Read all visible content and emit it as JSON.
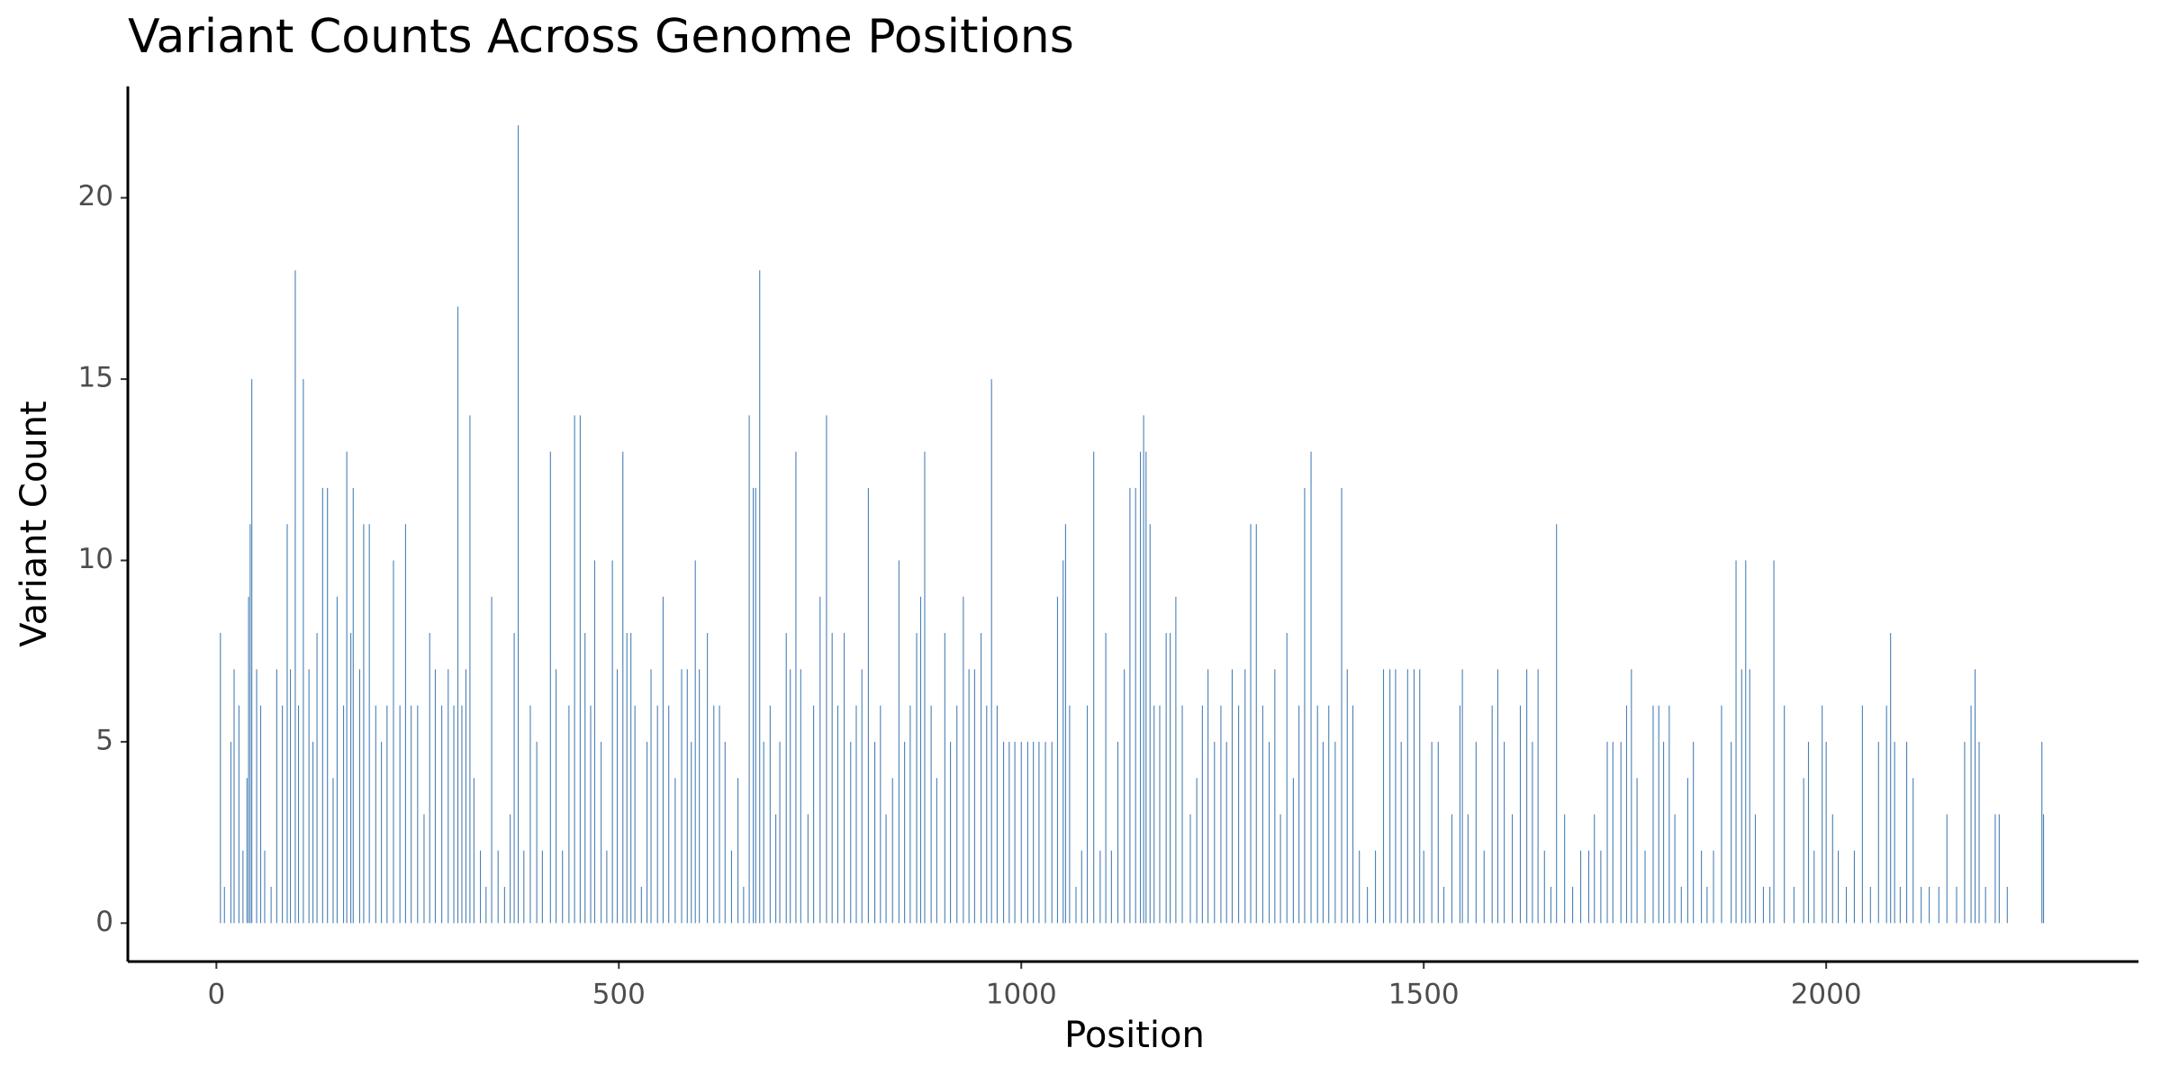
{
  "chart_data": {
    "type": "bar",
    "title": "Variant Counts Across Genome Positions",
    "xlabel": "Position",
    "ylabel": "Variant Count",
    "color": "#4a80b6",
    "xlim": [
      -110,
      2388
    ],
    "ylim": [
      -1.06,
      23.07
    ],
    "xticks": [
      0,
      500,
      1000,
      1500,
      2000
    ],
    "yticks": [
      0,
      5,
      10,
      15,
      20
    ],
    "x": [
      5,
      10,
      18,
      22,
      28,
      33,
      38,
      40,
      42,
      44,
      50,
      55,
      60,
      68,
      75,
      82,
      88,
      92,
      98,
      102,
      108,
      115,
      120,
      125,
      132,
      138,
      145,
      150,
      158,
      162,
      167,
      170,
      178,
      183,
      190,
      198,
      205,
      212,
      220,
      228,
      235,
      242,
      250,
      258,
      265,
      272,
      280,
      288,
      295,
      300,
      305,
      310,
      315,
      320,
      328,
      335,
      342,
      350,
      358,
      365,
      370,
      375,
      382,
      390,
      398,
      405,
      415,
      422,
      430,
      438,
      445,
      452,
      458,
      465,
      470,
      478,
      485,
      492,
      498,
      505,
      510,
      515,
      520,
      528,
      535,
      540,
      548,
      555,
      562,
      570,
      578,
      585,
      590,
      595,
      600,
      610,
      618,
      625,
      632,
      640,
      648,
      655,
      662,
      667,
      670,
      675,
      680,
      688,
      695,
      700,
      708,
      713,
      720,
      726,
      735,
      742,
      750,
      758,
      765,
      772,
      780,
      788,
      795,
      802,
      810,
      818,
      825,
      832,
      840,
      848,
      855,
      862,
      870,
      875,
      880,
      888,
      895,
      905,
      912,
      920,
      928,
      935,
      942,
      950,
      957,
      963,
      970,
      978,
      985,
      992,
      1000,
      1008,
      1015,
      1022,
      1030,
      1038,
      1045,
      1052,
      1055,
      1060,
      1068,
      1075,
      1082,
      1090,
      1098,
      1105,
      1112,
      1120,
      1128,
      1135,
      1142,
      1148,
      1152,
      1155,
      1160,
      1165,
      1172,
      1180,
      1185,
      1192,
      1200,
      1210,
      1218,
      1225,
      1232,
      1240,
      1248,
      1255,
      1262,
      1270,
      1278,
      1285,
      1292,
      1300,
      1308,
      1315,
      1322,
      1330,
      1338,
      1345,
      1352,
      1360,
      1368,
      1375,
      1382,
      1390,
      1398,
      1405,
      1412,
      1420,
      1430,
      1440,
      1450,
      1458,
      1465,
      1472,
      1480,
      1488,
      1495,
      1500,
      1510,
      1518,
      1525,
      1535,
      1545,
      1548,
      1555,
      1565,
      1575,
      1585,
      1592,
      1600,
      1610,
      1620,
      1628,
      1635,
      1642,
      1650,
      1658,
      1665,
      1675,
      1685,
      1695,
      1705,
      1712,
      1720,
      1728,
      1735,
      1745,
      1752,
      1758,
      1765,
      1775,
      1785,
      1792,
      1798,
      1805,
      1812,
      1820,
      1828,
      1835,
      1845,
      1852,
      1860,
      1870,
      1882,
      1888,
      1895,
      1900,
      1905,
      1912,
      1922,
      1930,
      1935,
      1948,
      1960,
      1972,
      1978,
      1985,
      1995,
      2000,
      2008,
      2015,
      2025,
      2035,
      2045,
      2055,
      2065,
      2075,
      2080,
      2085,
      2092,
      2100,
      2108,
      2118,
      2128,
      2140,
      2150,
      2162,
      2172,
      2180,
      2185,
      2190,
      2198,
      2210,
      2215,
      2225,
      2268,
      2270
    ],
    "values": [
      8,
      1,
      5,
      7,
      6,
      2,
      4,
      9,
      11,
      15,
      7,
      6,
      2,
      1,
      7,
      6,
      11,
      7,
      18,
      6,
      15,
      7,
      5,
      8,
      12,
      12,
      4,
      9,
      6,
      13,
      8,
      12,
      7,
      11,
      11,
      6,
      5,
      6,
      10,
      6,
      11,
      6,
      6,
      3,
      8,
      7,
      6,
      7,
      6,
      17,
      6,
      7,
      14,
      4,
      2,
      1,
      9,
      2,
      1,
      3,
      8,
      22,
      2,
      6,
      5,
      2,
      13,
      7,
      2,
      6,
      14,
      14,
      8,
      6,
      10,
      5,
      2,
      10,
      7,
      13,
      8,
      8,
      6,
      1,
      5,
      7,
      6,
      9,
      6,
      4,
      7,
      7,
      5,
      10,
      7,
      8,
      6,
      6,
      5,
      2,
      4,
      1,
      14,
      12,
      12,
      18,
      5,
      6,
      3,
      5,
      8,
      7,
      13,
      7,
      3,
      6,
      9,
      14,
      8,
      6,
      8,
      5,
      6,
      7,
      12,
      5,
      6,
      3,
      4,
      10,
      5,
      6,
      8,
      9,
      13,
      6,
      4,
      8,
      5,
      6,
      9,
      7,
      7,
      8,
      6,
      15,
      6,
      5,
      5,
      5,
      5,
      5,
      5,
      5,
      5,
      5,
      9,
      10,
      11,
      6,
      1,
      2,
      6,
      13,
      2,
      8,
      2,
      5,
      7,
      12,
      12,
      13,
      14,
      13,
      11,
      6,
      6,
      8,
      8,
      9,
      6,
      3,
      4,
      6,
      7,
      5,
      6,
      5,
      7,
      6,
      7,
      11,
      11,
      6,
      5,
      7,
      3,
      8,
      4,
      6,
      12,
      13,
      6,
      5,
      6,
      5,
      12,
      7,
      6,
      2,
      1,
      2,
      7,
      7,
      7,
      5,
      7,
      7,
      7,
      2,
      5,
      5,
      1,
      3,
      6,
      7,
      3,
      5,
      2,
      6,
      7,
      5,
      3,
      6,
      7,
      5,
      7,
      2,
      1,
      11,
      3,
      1,
      2,
      2,
      3,
      2,
      5,
      5,
      5,
      6,
      7,
      4,
      2,
      6,
      6,
      5,
      6,
      3,
      1,
      4,
      5,
      2,
      1,
      2,
      6,
      5,
      10,
      7,
      10,
      7,
      3,
      1,
      1,
      10,
      6,
      1,
      4,
      5,
      2,
      6,
      5,
      3,
      2,
      1,
      2,
      6,
      1,
      5,
      6,
      8,
      5,
      1,
      5,
      4,
      1,
      1,
      1,
      3,
      1,
      5,
      6,
      7,
      5,
      1,
      3,
      3,
      1,
      5,
      3
    ]
  }
}
